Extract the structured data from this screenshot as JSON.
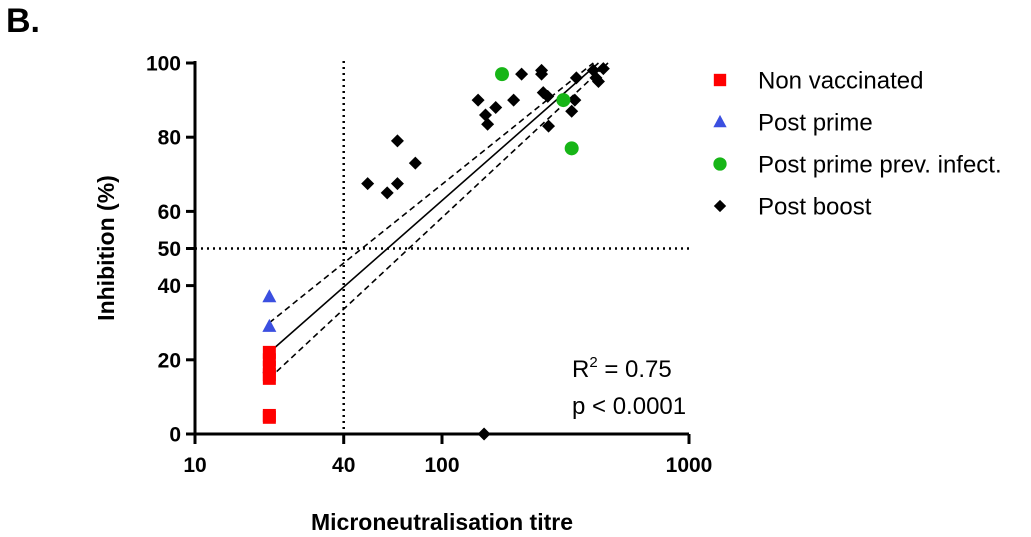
{
  "panel_label": "B.",
  "chart_data": {
    "type": "scatter",
    "x_scale": "log",
    "xlim": [
      10,
      1000
    ],
    "ylim": [
      0,
      100
    ],
    "x_ticks": [
      10,
      40,
      100,
      1000
    ],
    "x_tick_labels": [
      "10",
      "40",
      "100",
      "1000"
    ],
    "y_ticks": [
      0,
      20,
      40,
      50,
      60,
      80,
      100
    ],
    "y_tick_labels": [
      "0",
      "20",
      "40",
      "50",
      "60",
      "80",
      "100"
    ],
    "xlabel": "Microneutralisation titre",
    "ylabel": "Inhibition (%)",
    "grid": false,
    "legend_position": "right",
    "reference_lines": {
      "x": 40,
      "y": 50
    },
    "annotations": {
      "r2_prefix": "R",
      "r2_sup": "2",
      "r2_suffix": " = 0.75",
      "p": "p < 0.0001"
    },
    "regression": {
      "fit": [
        [
          20,
          22
        ],
        [
          430,
          100
        ]
      ],
      "ci_upper": [
        [
          20,
          30
        ],
        [
          410,
          100
        ]
      ],
      "ci_lower": [
        [
          20,
          15
        ],
        [
          470,
          100
        ]
      ]
    },
    "series": [
      {
        "name": "Non vaccinated",
        "marker": "square",
        "color": "#ff0000",
        "points": [
          [
            20,
            22
          ],
          [
            20,
            20
          ],
          [
            20,
            18
          ],
          [
            20,
            16
          ],
          [
            20,
            15
          ],
          [
            20,
            5
          ],
          [
            20,
            4.5
          ]
        ]
      },
      {
        "name": "Post prime",
        "marker": "triangle",
        "color": "#3b4fe0",
        "points": [
          [
            20,
            37
          ],
          [
            20,
            29
          ],
          [
            20,
            18
          ]
        ]
      },
      {
        "name": "Post prime prev. infect.",
        "marker": "circle",
        "color": "#17b517",
        "points": [
          [
            175,
            97
          ],
          [
            310,
            90
          ],
          [
            335,
            77
          ]
        ]
      },
      {
        "name": "Post boost",
        "marker": "diamond",
        "color": "#000000",
        "points": [
          [
            50,
            67.5
          ],
          [
            60,
            65
          ],
          [
            66,
            79
          ],
          [
            66,
            67.5
          ],
          [
            78,
            73
          ],
          [
            140,
            90
          ],
          [
            150,
            86
          ],
          [
            153,
            83.5
          ],
          [
            165,
            88
          ],
          [
            195,
            90
          ],
          [
            210,
            97
          ],
          [
            253,
            98
          ],
          [
            253,
            97
          ],
          [
            257,
            92
          ],
          [
            268,
            91
          ],
          [
            270,
            83
          ],
          [
            335,
            87
          ],
          [
            345,
            90
          ],
          [
            350,
            96
          ],
          [
            410,
            98
          ],
          [
            420,
            96
          ],
          [
            430,
            95
          ],
          [
            450,
            98.5
          ],
          [
            148,
            0
          ]
        ]
      }
    ]
  }
}
